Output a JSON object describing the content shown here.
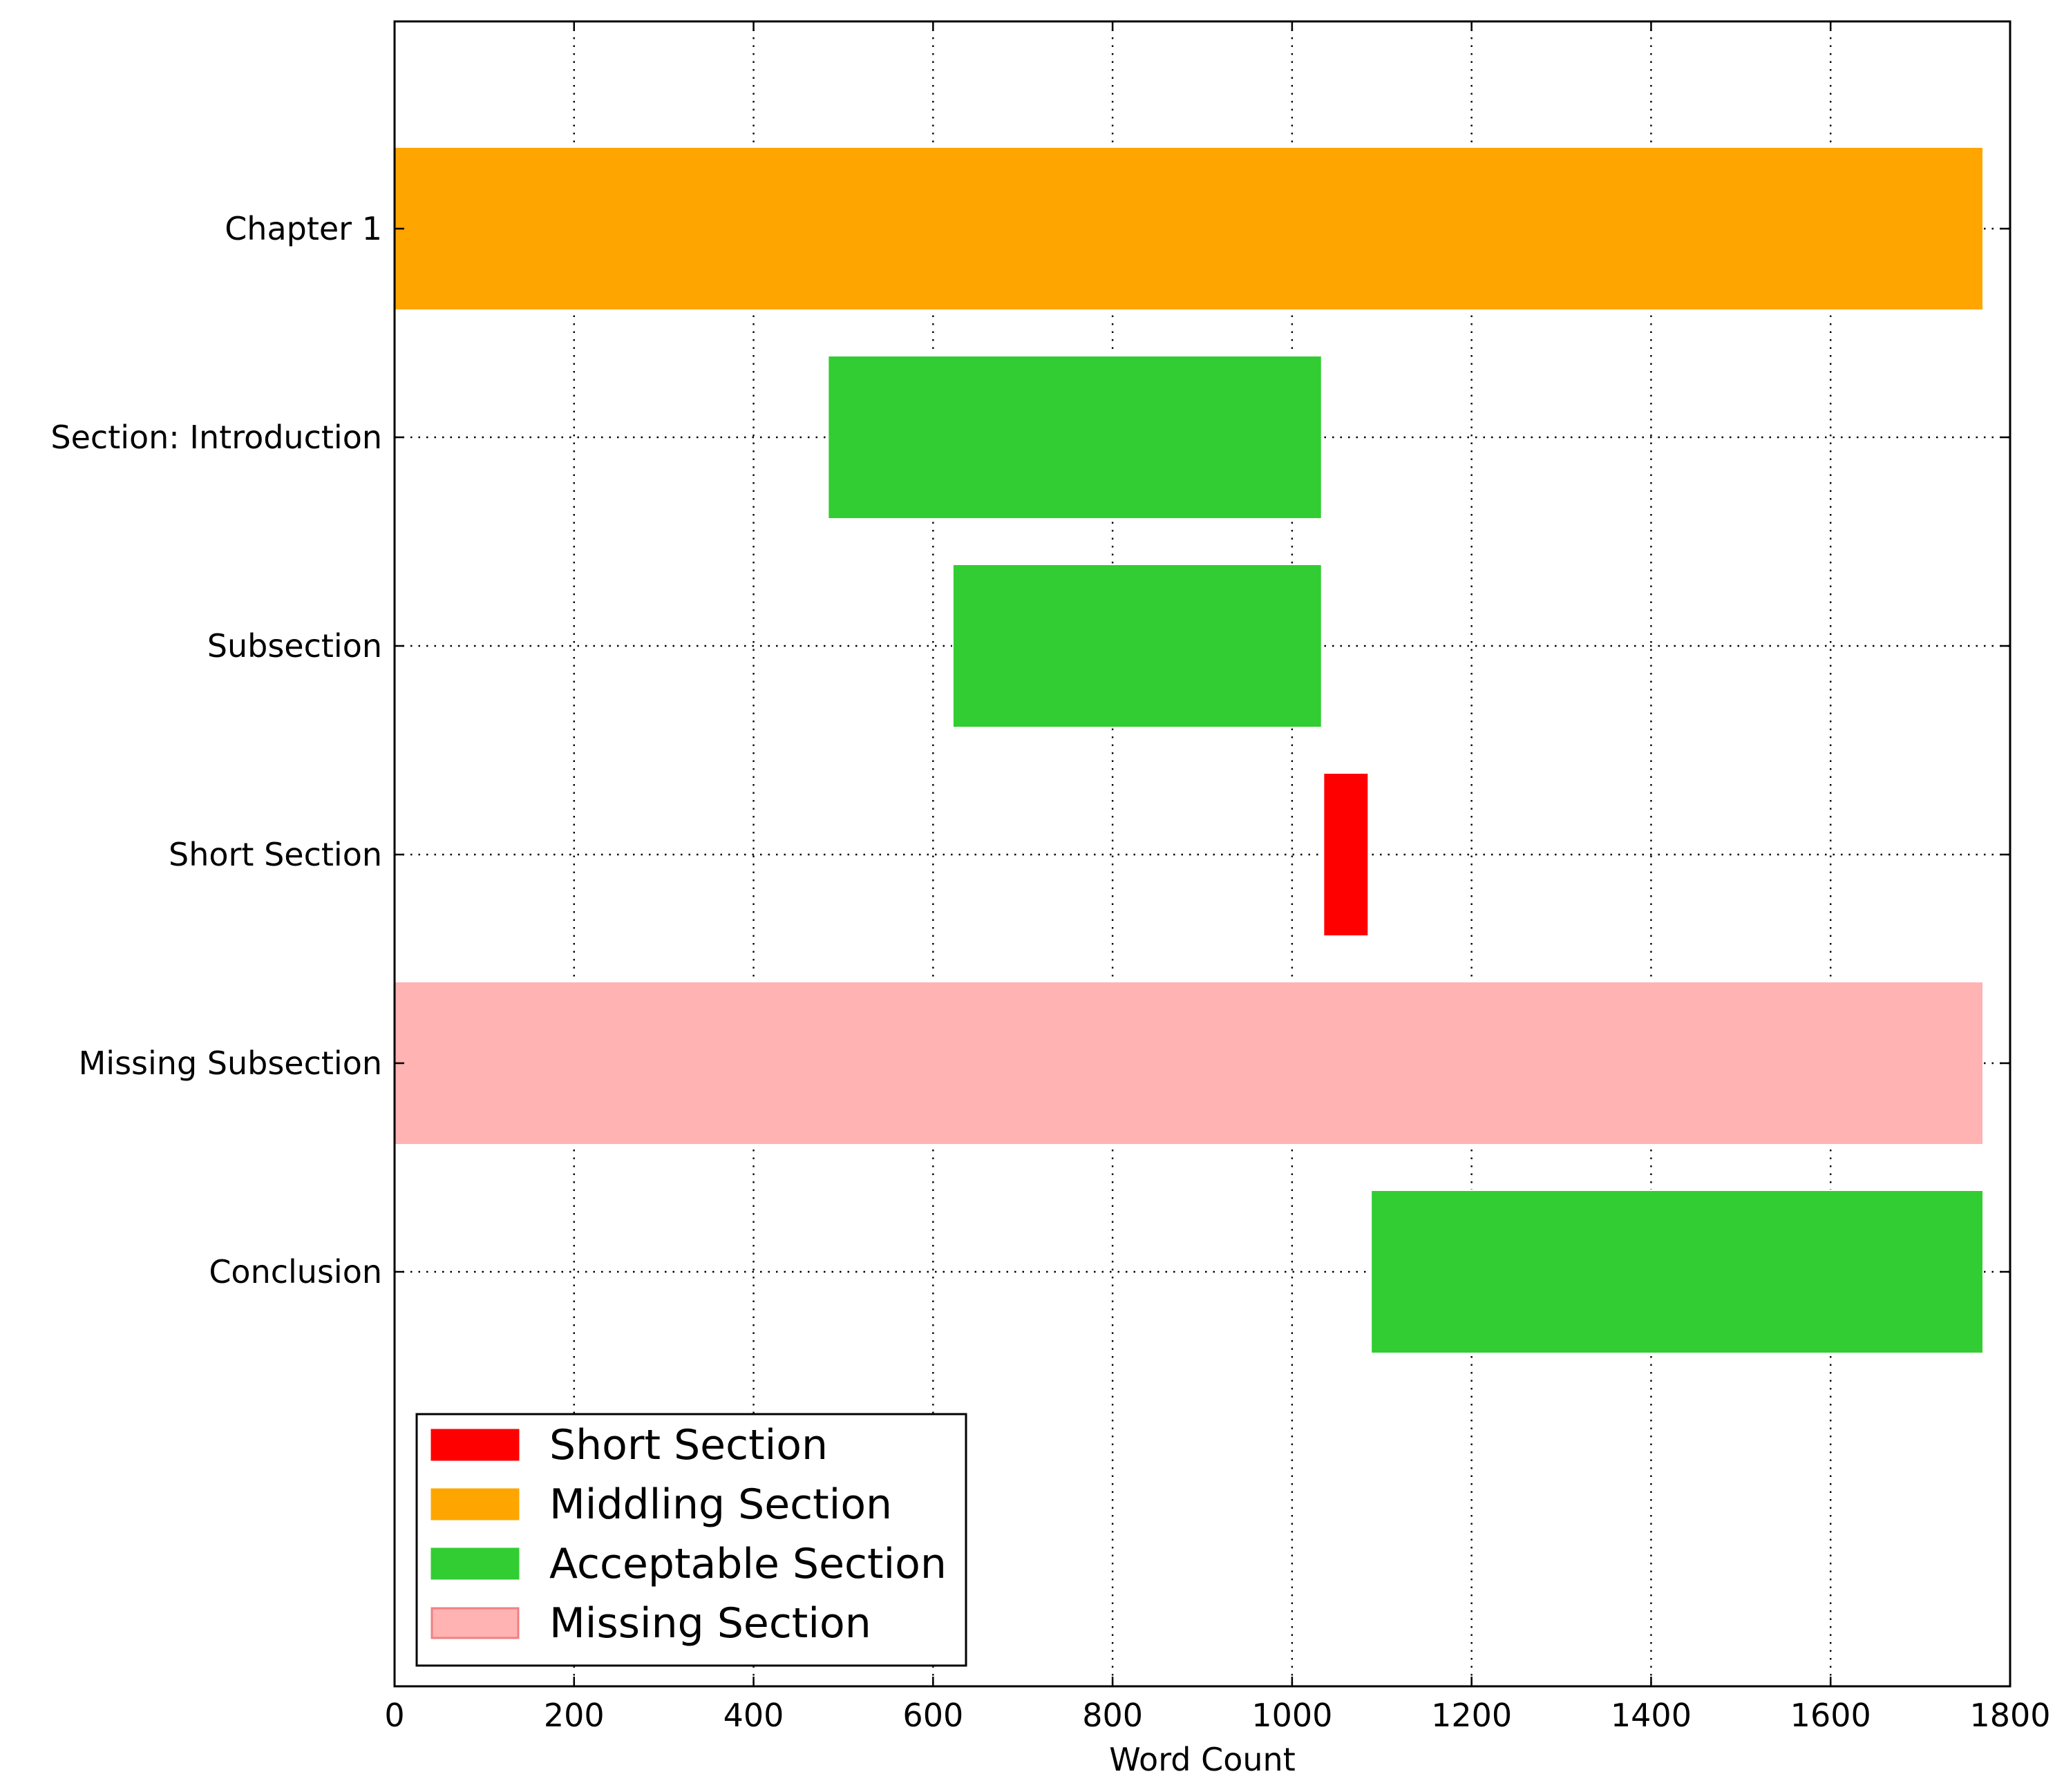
{
  "chart_data": {
    "type": "bar",
    "orientation": "horizontal",
    "title": "",
    "xlabel": "Word Count",
    "ylabel": "",
    "xlim": [
      0,
      1800
    ],
    "x_ticks": [
      0,
      200,
      400,
      600,
      800,
      1000,
      1200,
      1400,
      1600,
      1800
    ],
    "grid": true,
    "legend_position": "lower-left",
    "categories": [
      "Chapter 1",
      "Section: Introduction",
      "Subsection",
      "Short Section",
      "Missing Subsection",
      "Conclusion"
    ],
    "bars": [
      {
        "category": "Chapter 1",
        "start": 0,
        "end": 1770,
        "series": "Middling Section"
      },
      {
        "category": "Section: Introduction",
        "start": 483,
        "end": 1033,
        "series": "Acceptable Section"
      },
      {
        "category": "Subsection",
        "start": 622,
        "end": 1033,
        "series": "Acceptable Section"
      },
      {
        "category": "Short Section",
        "start": 1035,
        "end": 1085,
        "series": "Short Section"
      },
      {
        "category": "Missing Subsection",
        "start": 0,
        "end": 1770,
        "series": "Missing Section"
      },
      {
        "category": "Conclusion",
        "start": 1088,
        "end": 1770,
        "series": "Acceptable Section"
      }
    ],
    "legend": [
      {
        "name": "Short Section",
        "color": "#ff0000",
        "edge": "#ff0000"
      },
      {
        "name": "Middling Section",
        "color": "#ffa500",
        "edge": "#ffa500"
      },
      {
        "name": "Acceptable Section",
        "color": "#32cd32",
        "edge": "#32cd32"
      },
      {
        "name": "Missing Section",
        "color": "#ffb3b3",
        "edge": "#f08080"
      }
    ]
  }
}
